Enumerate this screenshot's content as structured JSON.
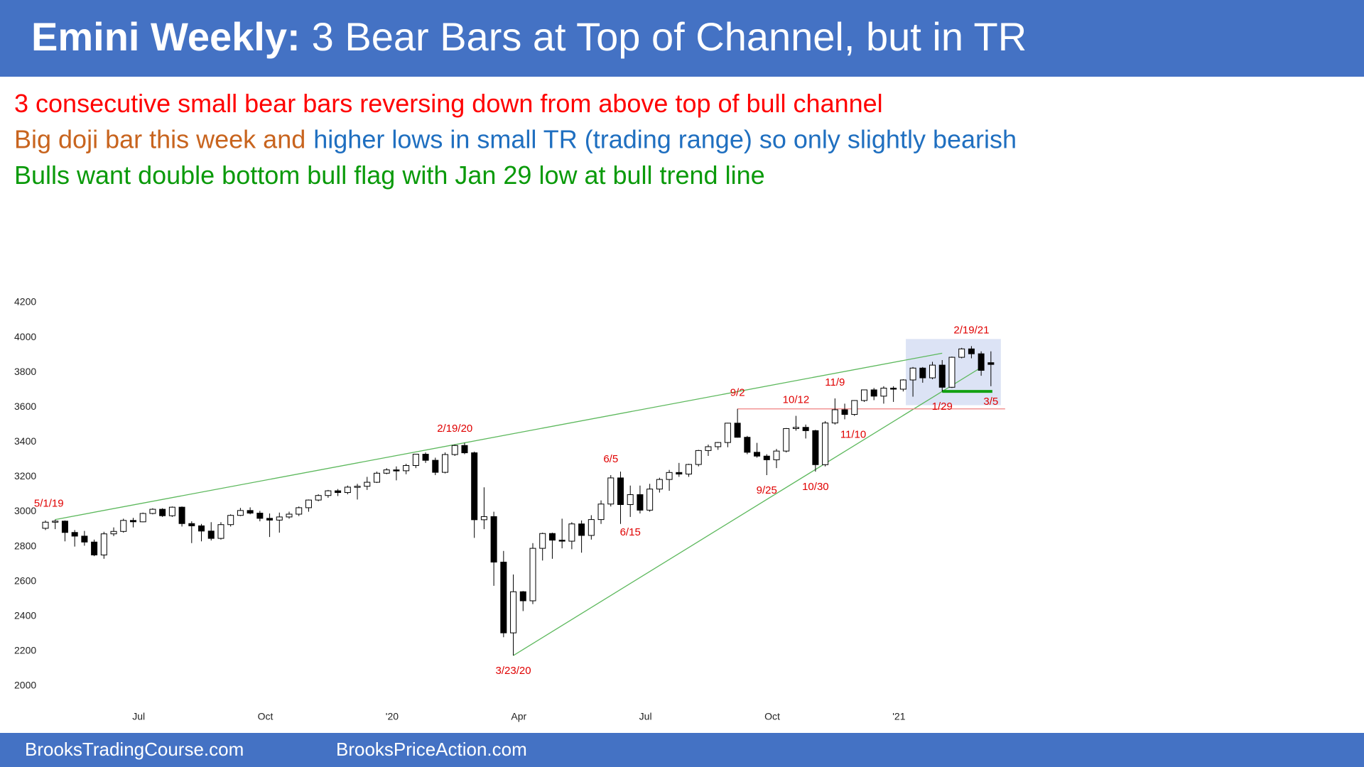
{
  "header": {
    "title_bold": "Emini Weekly:",
    "title_rest": "3 Bear Bars at Top of Channel, but in TR"
  },
  "notes": [
    [
      {
        "text": "3 consecutive small bear bars reversing down from above top of bull channel",
        "color": "#ff0000"
      }
    ],
    [
      {
        "text": "Big doji bar this week and",
        "color": "#c8641e"
      },
      {
        "text": "higher lows in small TR (trading range) so only slightly bearish",
        "color": "#1f6fc0"
      }
    ],
    [
      {
        "text": "Bulls want double bottom bull flag with Jan 29 low at bull trend line",
        "color": "#0a9a0a"
      }
    ]
  ],
  "chart_data": {
    "type": "candlestick",
    "up_color": "#ffffff",
    "down_color": "#000000",
    "ylim": [
      2000,
      4200
    ],
    "yticks": [
      2000,
      2200,
      2400,
      2600,
      2800,
      3000,
      3200,
      3400,
      3600,
      3800,
      4000,
      4200
    ],
    "grid": false,
    "categories": [
      null,
      null,
      null,
      null,
      null,
      null,
      null,
      null,
      null,
      null,
      "Jul",
      null,
      null,
      null,
      null,
      null,
      null,
      null,
      null,
      null,
      null,
      null,
      null,
      "Oct",
      null,
      null,
      null,
      null,
      null,
      null,
      null,
      null,
      null,
      null,
      null,
      null,
      "'20",
      null,
      null,
      null,
      null,
      null,
      null,
      null,
      null,
      null,
      null,
      null,
      null,
      "Apr",
      null,
      null,
      null,
      null,
      null,
      null,
      null,
      null,
      null,
      null,
      null,
      null,
      "Jul",
      null,
      null,
      null,
      null,
      null,
      null,
      null,
      null,
      null,
      null,
      null,
      null,
      "Oct",
      null,
      null,
      null,
      null,
      null,
      null,
      null,
      null,
      null,
      null,
      null,
      null,
      "'21",
      null,
      null,
      null,
      null,
      null,
      null,
      null,
      null,
      null
    ],
    "ohlc": [
      [
        2905,
        2950,
        2895,
        2940
      ],
      [
        2940,
        2955,
        2900,
        2946
      ],
      [
        2946,
        2950,
        2830,
        2881
      ],
      [
        2881,
        2895,
        2800,
        2860
      ],
      [
        2860,
        2890,
        2805,
        2826
      ],
      [
        2826,
        2840,
        2745,
        2752
      ],
      [
        2752,
        2885,
        2730,
        2873
      ],
      [
        2873,
        2910,
        2860,
        2887
      ],
      [
        2887,
        2960,
        2880,
        2950
      ],
      [
        2950,
        2965,
        2910,
        2942
      ],
      [
        2942,
        2995,
        2940,
        2990
      ],
      [
        2990,
        3020,
        2985,
        3014
      ],
      [
        3014,
        3020,
        2970,
        2977
      ],
      [
        2977,
        3030,
        2970,
        3026
      ],
      [
        3026,
        3030,
        2915,
        2932
      ],
      [
        2932,
        2945,
        2820,
        2919
      ],
      [
        2919,
        2930,
        2830,
        2889
      ],
      [
        2889,
        2940,
        2835,
        2847
      ],
      [
        2847,
        2940,
        2840,
        2926
      ],
      [
        2926,
        2985,
        2915,
        2979
      ],
      [
        2979,
        3022,
        2975,
        3007
      ],
      [
        3007,
        3025,
        2985,
        2992
      ],
      [
        2992,
        3005,
        2945,
        2962
      ],
      [
        2962,
        2990,
        2855,
        2952
      ],
      [
        2952,
        2995,
        2880,
        2970
      ],
      [
        2970,
        3000,
        2960,
        2986
      ],
      [
        2986,
        3030,
        2975,
        3023
      ],
      [
        3023,
        3070,
        3000,
        3067
      ],
      [
        3067,
        3100,
        3060,
        3093
      ],
      [
        3093,
        3125,
        3080,
        3120
      ],
      [
        3120,
        3130,
        3090,
        3110
      ],
      [
        3110,
        3150,
        3100,
        3141
      ],
      [
        3141,
        3160,
        3070,
        3146
      ],
      [
        3146,
        3200,
        3125,
        3169
      ],
      [
        3169,
        3230,
        3165,
        3221
      ],
      [
        3221,
        3250,
        3215,
        3240
      ],
      [
        3240,
        3260,
        3180,
        3235
      ],
      [
        3235,
        3275,
        3215,
        3265
      ],
      [
        3265,
        3330,
        3250,
        3330
      ],
      [
        3330,
        3340,
        3280,
        3295
      ],
      [
        3295,
        3310,
        3210,
        3226
      ],
      [
        3226,
        3340,
        3220,
        3328
      ],
      [
        3328,
        3385,
        3320,
        3380
      ],
      [
        3380,
        3395,
        3330,
        3338
      ],
      [
        3338,
        3345,
        2850,
        2954
      ],
      [
        2954,
        3140,
        2900,
        2972
      ],
      [
        2972,
        3000,
        2575,
        2711
      ],
      [
        2711,
        2775,
        2280,
        2305
      ],
      [
        2305,
        2640,
        2175,
        2541
      ],
      [
        2541,
        2545,
        2430,
        2489
      ],
      [
        2489,
        2820,
        2470,
        2790
      ],
      [
        2790,
        2880,
        2720,
        2875
      ],
      [
        2875,
        2880,
        2730,
        2837
      ],
      [
        2837,
        2960,
        2790,
        2831
      ],
      [
        2831,
        2940,
        2785,
        2930
      ],
      [
        2930,
        2950,
        2765,
        2864
      ],
      [
        2864,
        2980,
        2840,
        2955
      ],
      [
        2955,
        3065,
        2930,
        3044
      ],
      [
        3044,
        3210,
        3030,
        3194
      ],
      [
        3194,
        3230,
        2930,
        3041
      ],
      [
        3041,
        3150,
        2970,
        3098
      ],
      [
        3098,
        3150,
        2990,
        3009
      ],
      [
        3009,
        3160,
        3000,
        3130
      ],
      [
        3130,
        3195,
        3110,
        3185
      ],
      [
        3185,
        3240,
        3120,
        3225
      ],
      [
        3225,
        3280,
        3200,
        3216
      ],
      [
        3216,
        3275,
        3200,
        3271
      ],
      [
        3271,
        3355,
        3260,
        3351
      ],
      [
        3351,
        3385,
        3320,
        3373
      ],
      [
        3373,
        3400,
        3355,
        3397
      ],
      [
        3397,
        3510,
        3370,
        3508
      ],
      [
        3508,
        3590,
        3425,
        3427
      ],
      [
        3427,
        3435,
        3330,
        3341
      ],
      [
        3341,
        3395,
        3310,
        3319
      ],
      [
        3319,
        3330,
        3210,
        3298
      ],
      [
        3298,
        3360,
        3250,
        3348
      ],
      [
        3348,
        3480,
        3340,
        3477
      ],
      [
        3477,
        3550,
        3465,
        3484
      ],
      [
        3484,
        3500,
        3420,
        3465
      ],
      [
        3465,
        3470,
        3230,
        3270
      ],
      [
        3270,
        3520,
        3260,
        3509
      ],
      [
        3509,
        3650,
        3500,
        3585
      ],
      [
        3585,
        3620,
        3530,
        3558
      ],
      [
        3558,
        3640,
        3550,
        3638
      ],
      [
        3638,
        3700,
        3630,
        3699
      ],
      [
        3699,
        3710,
        3640,
        3663
      ],
      [
        3663,
        3720,
        3620,
        3709
      ],
      [
        3709,
        3720,
        3630,
        3703
      ],
      [
        3703,
        3760,
        3690,
        3756
      ],
      [
        3756,
        3830,
        3660,
        3824
      ],
      [
        3824,
        3830,
        3740,
        3768
      ],
      [
        3768,
        3860,
        3760,
        3841
      ],
      [
        3841,
        3870,
        3690,
        3714
      ],
      [
        3714,
        3890,
        3710,
        3886
      ],
      [
        3886,
        3940,
        3880,
        3934
      ],
      [
        3934,
        3950,
        3880,
        3906
      ],
      [
        3906,
        3920,
        3780,
        3811
      ],
      [
        3855,
        3920,
        3720,
        3845
      ]
    ],
    "annotations": [
      "5/1/19",
      "2/19/20",
      "3/23/20",
      "6/5",
      "6/15",
      "9/2",
      "9/25",
      "10/12",
      "10/30",
      "11/9",
      "11/10",
      "1/29",
      "2/19/21",
      "3/5"
    ]
  },
  "footer": {
    "links": [
      "BrooksTradingCourse.com",
      "BrooksPriceAction.com"
    ]
  }
}
